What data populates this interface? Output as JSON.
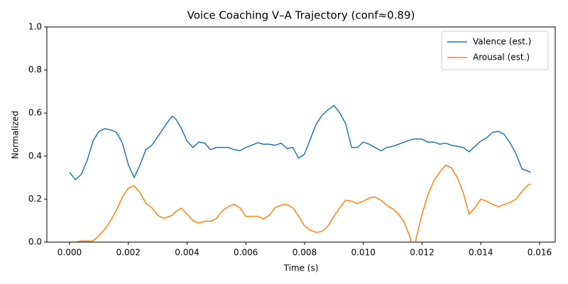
{
  "chart_data": {
    "type": "line",
    "title": "Voice Coaching V–A Trajectory (conf≈0.89)",
    "x_label": "Time (s)",
    "y_label": "Normalized",
    "x": [
      0,
      0.0002,
      0.0004,
      0.0006,
      0.0008,
      0.001,
      0.0012,
      0.0014,
      0.0016,
      0.0018,
      0.002,
      0.0022,
      0.0024,
      0.0026,
      0.0028,
      0.003,
      0.0032,
      0.0034,
      0.0035,
      0.0036,
      0.0038,
      0.004,
      0.0042,
      0.0044,
      0.0046,
      0.0048,
      0.005,
      0.0052,
      0.0054,
      0.0056,
      0.0058,
      0.006,
      0.0062,
      0.0064,
      0.0066,
      0.0068,
      0.007,
      0.0072,
      0.0074,
      0.0076,
      0.0078,
      0.008,
      0.0082,
      0.0084,
      0.0086,
      0.0088,
      0.009,
      0.0092,
      0.0094,
      0.0096,
      0.0098,
      0.01,
      0.0102,
      0.0104,
      0.0106,
      0.0108,
      0.011,
      0.0112,
      0.0114,
      0.0116,
      0.0117,
      0.0118,
      0.012,
      0.0122,
      0.0124,
      0.0126,
      0.0128,
      0.013,
      0.0132,
      0.0134,
      0.0136,
      0.0138,
      0.014,
      0.0142,
      0.0144,
      0.0146,
      0.0148,
      0.015,
      0.0152,
      0.0154,
      0.0156,
      0.0157
    ],
    "series": [
      {
        "name": "Valence (est.)",
        "color": "#1f77b4",
        "values": [
          0.325,
          0.29,
          0.315,
          0.38,
          0.47,
          0.515,
          0.527,
          0.522,
          0.51,
          0.46,
          0.36,
          0.3,
          0.36,
          0.43,
          0.45,
          0.49,
          0.53,
          0.57,
          0.585,
          0.575,
          0.53,
          0.47,
          0.44,
          0.465,
          0.46,
          0.43,
          0.44,
          0.44,
          0.44,
          0.43,
          0.425,
          0.44,
          0.45,
          0.462,
          0.455,
          0.455,
          0.45,
          0.46,
          0.435,
          0.44,
          0.39,
          0.41,
          0.48,
          0.55,
          0.59,
          0.615,
          0.635,
          0.6,
          0.55,
          0.44,
          0.44,
          0.465,
          0.455,
          0.44,
          0.425,
          0.44,
          0.445,
          0.455,
          0.465,
          0.475,
          0.478,
          0.48,
          0.478,
          0.465,
          0.465,
          0.455,
          0.46,
          0.45,
          0.445,
          0.44,
          0.42,
          0.445,
          0.47,
          0.485,
          0.51,
          0.515,
          0.5,
          0.46,
          0.41,
          0.34,
          0.33,
          0.325
        ]
      },
      {
        "name": "Arousal (est.)",
        "color": "#ff7f0e",
        "values": [
          0,
          0,
          0.005,
          0.005,
          0.005,
          0.03,
          0.06,
          0.1,
          0.15,
          0.21,
          0.25,
          0.262,
          0.23,
          0.18,
          0.16,
          0.125,
          0.11,
          0.12,
          0.125,
          0.14,
          0.158,
          0.13,
          0.1,
          0.088,
          0.097,
          0.097,
          0.11,
          0.145,
          0.165,
          0.175,
          0.16,
          0.12,
          0.12,
          0.12,
          0.108,
          0.125,
          0.16,
          0.172,
          0.175,
          0.16,
          0.12,
          0.075,
          0.055,
          0.045,
          0.05,
          0.075,
          0.12,
          0.16,
          0.195,
          0.19,
          0.18,
          0.19,
          0.205,
          0.21,
          0.195,
          0.17,
          0.155,
          0.13,
          0.09,
          0.02,
          -0.1,
          0.02,
          0.13,
          0.22,
          0.285,
          0.325,
          0.358,
          0.345,
          0.3,
          0.23,
          0.13,
          0.16,
          0.2,
          0.19,
          0.175,
          0.165,
          0.175,
          0.185,
          0.2,
          0.235,
          0.265,
          0.27
        ]
      }
    ],
    "xlim": [
      -0.000773,
      0.016532
    ],
    "ylim": [
      0,
      1
    ],
    "xticks": [
      {
        "value": 0,
        "label": "0.000"
      },
      {
        "value": 0.002,
        "label": "0.002"
      },
      {
        "value": 0.004,
        "label": "0.004"
      },
      {
        "value": 0.006,
        "label": "0.006"
      },
      {
        "value": 0.008,
        "label": "0.008"
      },
      {
        "value": 0.01,
        "label": "0.010"
      },
      {
        "value": 0.012,
        "label": "0.012"
      },
      {
        "value": 0.014,
        "label": "0.014"
      },
      {
        "value": 0.016,
        "label": "0.016"
      }
    ],
    "yticks": [
      {
        "value": 0,
        "label": "0.0"
      },
      {
        "value": 0.2,
        "label": "0.2"
      },
      {
        "value": 0.4,
        "label": "0.4"
      },
      {
        "value": 0.6,
        "label": "0.6"
      },
      {
        "value": 0.8,
        "label": "0.8"
      },
      {
        "value": 1,
        "label": "1.0"
      }
    ],
    "legend": "upper right"
  }
}
